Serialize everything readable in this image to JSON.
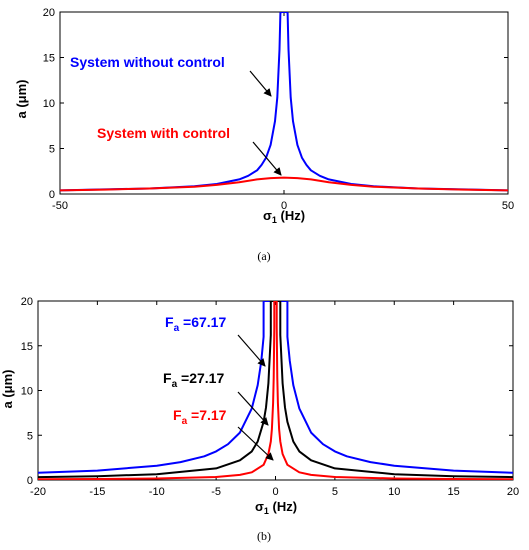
{
  "colors": {
    "blue": "#0000ff",
    "red": "#ff0000",
    "black": "#000000"
  },
  "chart_data": [
    {
      "type": "line",
      "caption": "(a)",
      "xlabel": {
        "main": "σ",
        "sub": "1",
        "unit": " (Hz)"
      },
      "ylabel": "a (μm)",
      "xlim": [
        -50,
        50
      ],
      "ylim": [
        0,
        20
      ],
      "xticks": [
        -50,
        0,
        50
      ],
      "yticks": [
        0,
        5,
        10,
        15,
        20
      ],
      "grid": false,
      "series": [
        {
          "name": "System without control",
          "color": "#0000ff",
          "x": [
            -50,
            -40,
            -30,
            -20,
            -15,
            -10,
            -8,
            -6,
            -5,
            -4,
            -3,
            -2,
            -1.5,
            -1,
            -0.8,
            -0.6,
            -0.5,
            -0.5,
            0.5,
            0.5,
            0.6,
            0.8,
            1,
            1.5,
            2,
            3,
            4,
            5,
            6,
            8,
            10,
            15,
            20,
            30,
            40,
            50
          ],
          "y": [
            0.4,
            0.5,
            0.6,
            0.85,
            1.1,
            1.6,
            2.0,
            2.6,
            3.2,
            4.0,
            5.4,
            8.0,
            10.6,
            15.9,
            19.9,
            20,
            20,
            20,
            20,
            20,
            20,
            19.9,
            15.9,
            10.6,
            8.0,
            5.4,
            4.0,
            3.2,
            2.6,
            2.0,
            1.6,
            1.1,
            0.85,
            0.6,
            0.5,
            0.4
          ]
        },
        {
          "name": "System with control",
          "color": "#ff0000",
          "x": [
            -50,
            -40,
            -30,
            -20,
            -15,
            -10,
            -6,
            -3,
            0,
            3,
            6,
            10,
            15,
            20,
            30,
            40,
            50
          ],
          "y": [
            0.4,
            0.48,
            0.6,
            0.8,
            1.0,
            1.3,
            1.6,
            1.75,
            1.8,
            1.75,
            1.6,
            1.3,
            1.0,
            0.8,
            0.6,
            0.48,
            0.4
          ]
        }
      ],
      "annotations": [
        {
          "text": "System without control",
          "color": "#0000ff"
        },
        {
          "text": "System with control",
          "color": "#ff0000"
        }
      ]
    },
    {
      "type": "line",
      "caption": "(b)",
      "xlabel": {
        "main": "σ",
        "sub": "1",
        "unit": " (Hz)"
      },
      "ylabel": "a (μm)",
      "xlim": [
        -20,
        20
      ],
      "ylim": [
        0,
        20
      ],
      "xticks": [
        -20,
        -15,
        -10,
        -5,
        0,
        5,
        10,
        15,
        20
      ],
      "yticks": [
        0,
        5,
        10,
        15,
        20
      ],
      "grid": false,
      "series": [
        {
          "name": "F_a =67.17",
          "color": "#0000ff",
          "x": [
            -20,
            -15,
            -10,
            -8,
            -6,
            -5,
            -4,
            -3,
            -2,
            -1.5,
            -1.2,
            -1,
            -1,
            1,
            1,
            1.2,
            1.5,
            2,
            3,
            4,
            5,
            6,
            8,
            10,
            15,
            20
          ],
          "y": [
            0.8,
            1.05,
            1.6,
            2.0,
            2.65,
            3.2,
            4.0,
            5.3,
            8.0,
            10.6,
            13.3,
            16,
            20,
            20,
            16,
            13.3,
            10.6,
            8.0,
            5.3,
            4.0,
            3.2,
            2.65,
            2.0,
            1.6,
            1.05,
            0.8
          ]
        },
        {
          "name": "F_a =27.17",
          "color": "#000000",
          "x": [
            -20,
            -15,
            -10,
            -5,
            -3,
            -2,
            -1.5,
            -1,
            -0.8,
            -0.6,
            -0.4,
            -0.4,
            0.4,
            0.4,
            0.6,
            0.8,
            1,
            1.5,
            2,
            3,
            5,
            10,
            15,
            20
          ],
          "y": [
            0.32,
            0.43,
            0.65,
            1.3,
            2.2,
            3.2,
            4.3,
            6.5,
            8.1,
            10.8,
            16.2,
            20,
            20,
            16.2,
            10.8,
            8.1,
            6.5,
            4.3,
            3.2,
            2.2,
            1.3,
            0.65,
            0.43,
            0.32
          ]
        },
        {
          "name": "F_a =7.17",
          "color": "#ff0000",
          "x": [
            -20,
            -15,
            -10,
            -5,
            -3,
            -2,
            -1,
            -0.6,
            -0.4,
            -0.3,
            -0.2,
            -0.15,
            -0.1,
            -0.1,
            0.1,
            0.1,
            0.15,
            0.2,
            0.3,
            0.4,
            0.6,
            1,
            2,
            3,
            5,
            10,
            15,
            20
          ],
          "y": [
            0.08,
            0.11,
            0.17,
            0.34,
            0.57,
            0.86,
            1.7,
            2.9,
            4.3,
            5.7,
            8.6,
            11.4,
            17.1,
            20,
            20,
            17.1,
            11.4,
            8.6,
            5.7,
            4.3,
            2.9,
            1.7,
            0.86,
            0.57,
            0.34,
            0.17,
            0.11,
            0.08
          ]
        }
      ],
      "annotations": [
        {
          "main": "F",
          "sub": "a",
          "value": " =67.17",
          "color": "#0000ff"
        },
        {
          "main": "F",
          "sub": "a",
          "value": " =27.17",
          "color": "#000000"
        },
        {
          "main": "F",
          "sub": "a",
          "value": " =7.17",
          "color": "#ff0000"
        }
      ]
    }
  ]
}
